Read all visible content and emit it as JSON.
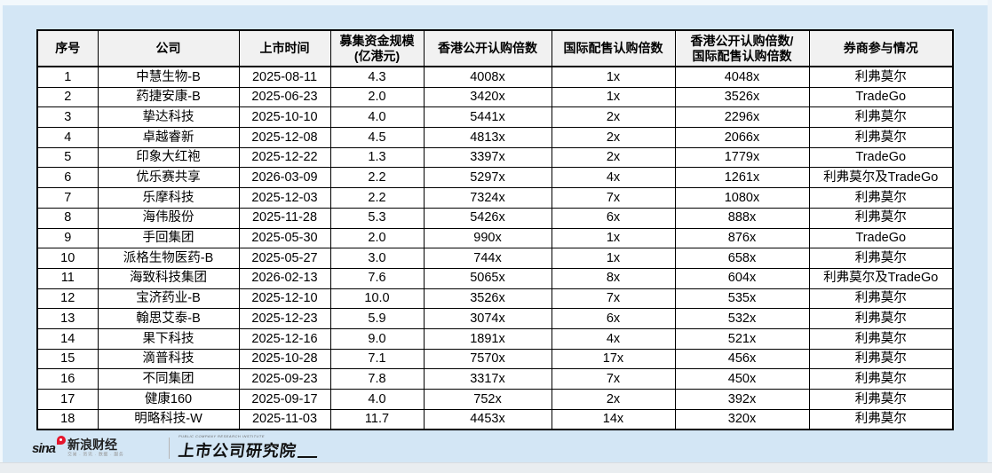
{
  "chart_data": {
    "type": "table",
    "columns": [
      "序号",
      "公司",
      "上市时间",
      "募集资金规模(亿港元)",
      "香港公开认购倍数",
      "国际配售认购倍数",
      "香港公开认购倍数/国际配售认购倍数",
      "券商参与情况"
    ],
    "header_lines": [
      [
        "序号"
      ],
      [
        "公司"
      ],
      [
        "上市时间"
      ],
      [
        "募集资金规模",
        "(亿港元)"
      ],
      [
        "香港公开认购倍数"
      ],
      [
        "国际配售认购倍数"
      ],
      [
        "香港公开认购倍数/",
        "国际配售认购倍数"
      ],
      [
        "券商参与情况"
      ]
    ],
    "rows": [
      [
        "1",
        "中慧生物-B",
        "2025-08-11",
        "4.3",
        "4008x",
        "1x",
        "4048x",
        "利弗莫尔"
      ],
      [
        "2",
        "药捷安康-B",
        "2025-06-23",
        "2.0",
        "3420x",
        "1x",
        "3526x",
        "TradeGo"
      ],
      [
        "3",
        "挚达科技",
        "2025-10-10",
        "4.0",
        "5441x",
        "2x",
        "2296x",
        "利弗莫尔"
      ],
      [
        "4",
        "卓越睿新",
        "2025-12-08",
        "4.5",
        "4813x",
        "2x",
        "2066x",
        "利弗莫尔"
      ],
      [
        "5",
        "印象大红袍",
        "2025-12-22",
        "1.3",
        "3397x",
        "2x",
        "1779x",
        "TradeGo"
      ],
      [
        "6",
        "优乐赛共享",
        "2026-03-09",
        "2.2",
        "5297x",
        "4x",
        "1261x",
        "利弗莫尔及TradeGo"
      ],
      [
        "7",
        "乐摩科技",
        "2025-12-03",
        "2.2",
        "7324x",
        "7x",
        "1080x",
        "利弗莫尔"
      ],
      [
        "8",
        "海伟股份",
        "2025-11-28",
        "5.3",
        "5426x",
        "6x",
        "888x",
        "利弗莫尔"
      ],
      [
        "9",
        "手回集团",
        "2025-05-30",
        "2.0",
        "990x",
        "1x",
        "876x",
        "TradeGo"
      ],
      [
        "10",
        "派格生物医药-B",
        "2025-05-27",
        "3.0",
        "744x",
        "1x",
        "658x",
        "利弗莫尔"
      ],
      [
        "11",
        "海致科技集团",
        "2026-02-13",
        "7.6",
        "5065x",
        "8x",
        "604x",
        "利弗莫尔及TradeGo"
      ],
      [
        "12",
        "宝济药业-B",
        "2025-12-10",
        "10.0",
        "3526x",
        "7x",
        "535x",
        "利弗莫尔"
      ],
      [
        "13",
        "翰思艾泰-B",
        "2025-12-23",
        "5.9",
        "3074x",
        "6x",
        "532x",
        "利弗莫尔"
      ],
      [
        "14",
        "果下科技",
        "2025-12-16",
        "9.0",
        "1891x",
        "4x",
        "521x",
        "利弗莫尔"
      ],
      [
        "15",
        "滴普科技",
        "2025-10-28",
        "7.1",
        "7570x",
        "17x",
        "456x",
        "利弗莫尔"
      ],
      [
        "16",
        "不同集团",
        "2025-09-23",
        "7.8",
        "3317x",
        "7x",
        "450x",
        "利弗莫尔"
      ],
      [
        "17",
        "健康160",
        "2025-09-17",
        "4.0",
        "752x",
        "2x",
        "392x",
        "利弗莫尔"
      ],
      [
        "18",
        "明略科技-W",
        "2025-11-03",
        "11.7",
        "4453x",
        "14x",
        "320x",
        "利弗莫尔"
      ]
    ]
  },
  "footer": {
    "sina_brand": "sina",
    "sina_name": "新浪财经",
    "sina_tagline": "交易 · 资讯 · 数据 · 服务",
    "institute_en": "PUBLIC COMPANY RESEARCH INSTITUTE",
    "institute_name": "上市公司研究院"
  },
  "colors": {
    "page_background": "#d3e6f5",
    "table_header_background": "#f1f1f1",
    "grid_line": "#000000",
    "sina_red": "#e6162d"
  }
}
